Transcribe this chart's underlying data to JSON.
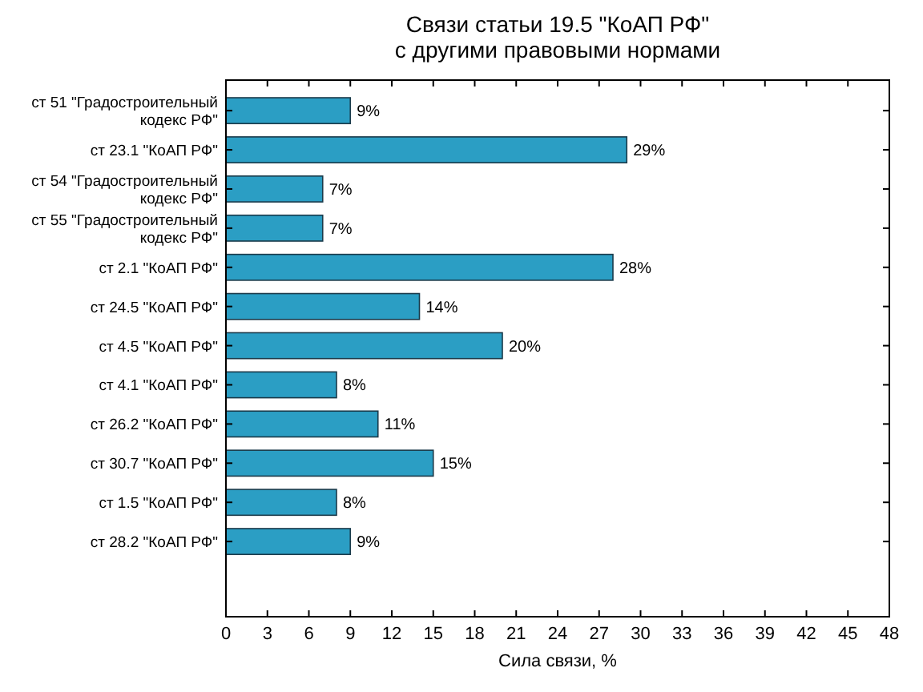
{
  "chart_data": {
    "type": "bar",
    "orientation": "horizontal",
    "title": "Связи статьи 19.5 \"КоАП РФ\"\nс другими правовыми нормами",
    "xlabel": "Сила связи, %",
    "categories": [
      "ст 51 \"Градостроительный\nкодекс РФ\"",
      "ст 23.1 \"КоАП РФ\"",
      "ст 54 \"Градостроительный\nкодекс РФ\"",
      "ст 55 \"Градостроительный\nкодекс РФ\"",
      "ст 2.1 \"КоАП РФ\"",
      "ст 24.5 \"КоАП РФ\"",
      "ст 4.5 \"КоАП РФ\"",
      "ст 4.1 \"КоАП РФ\"",
      "ст 26.2 \"КоАП РФ\"",
      "ст 30.7 \"КоАП РФ\"",
      "ст 1.5 \"КоАП РФ\"",
      "ст 28.2 \"КоАП РФ\""
    ],
    "values": [
      9,
      29,
      7,
      7,
      28,
      14,
      20,
      8,
      11,
      15,
      8,
      9
    ],
    "value_labels": [
      "9%",
      "29%",
      "7%",
      "7%",
      "28%",
      "14%",
      "20%",
      "8%",
      "11%",
      "15%",
      "8%",
      "9%"
    ],
    "color": "#2b9ec4",
    "xlim": [
      0,
      48
    ],
    "xticks": [
      0,
      3,
      6,
      9,
      12,
      15,
      18,
      21,
      24,
      27,
      30,
      33,
      36,
      39,
      42,
      45,
      48
    ],
    "grid": false
  }
}
